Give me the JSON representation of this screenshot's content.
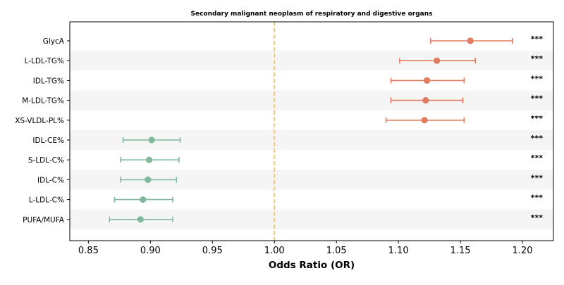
{
  "chart_data": {
    "type": "scatter",
    "subtype": "forest-plot",
    "title": "Secondary malignant neoplasm of respiratory and digestive organs",
    "xlabel": "Odds Ratio (OR)",
    "ylabel": "",
    "xlim": [
      0.835,
      1.225
    ],
    "xticks": [
      "0.85",
      "0.90",
      "0.95",
      "1.00",
      "1.05",
      "1.10",
      "1.15",
      "1.20"
    ],
    "reference_line": 1.0,
    "reference_line_style": "dashed",
    "reference_line_color": "#f2c879",
    "grid": false,
    "row_band_color": "#f5f5f5",
    "colors": {
      "risk": "#e07b5f",
      "protective": "#80b89c"
    },
    "rows": [
      {
        "label": "GlycA",
        "or": 1.158,
        "lo": 1.126,
        "hi": 1.192,
        "sig": "***",
        "group": "risk"
      },
      {
        "label": "L-LDL-TG%",
        "or": 1.131,
        "lo": 1.101,
        "hi": 1.162,
        "sig": "***",
        "group": "risk"
      },
      {
        "label": "IDL-TG%",
        "or": 1.123,
        "lo": 1.094,
        "hi": 1.153,
        "sig": "***",
        "group": "risk"
      },
      {
        "label": "M-LDL-TG%",
        "or": 1.122,
        "lo": 1.094,
        "hi": 1.152,
        "sig": "***",
        "group": "risk"
      },
      {
        "label": "XS-VLDL-PL%",
        "or": 1.121,
        "lo": 1.09,
        "hi": 1.153,
        "sig": "***",
        "group": "risk"
      },
      {
        "label": "IDL-CE%",
        "or": 0.901,
        "lo": 0.878,
        "hi": 0.924,
        "sig": "***",
        "group": "protective"
      },
      {
        "label": "S-LDL-C%",
        "or": 0.899,
        "lo": 0.876,
        "hi": 0.923,
        "sig": "***",
        "group": "protective"
      },
      {
        "label": "IDL-C%",
        "or": 0.898,
        "lo": 0.876,
        "hi": 0.921,
        "sig": "***",
        "group": "protective"
      },
      {
        "label": "L-LDL-C%",
        "or": 0.894,
        "lo": 0.871,
        "hi": 0.918,
        "sig": "***",
        "group": "protective"
      },
      {
        "label": "PUFA/MUFA",
        "or": 0.892,
        "lo": 0.867,
        "hi": 0.918,
        "sig": "***",
        "group": "protective"
      }
    ]
  }
}
